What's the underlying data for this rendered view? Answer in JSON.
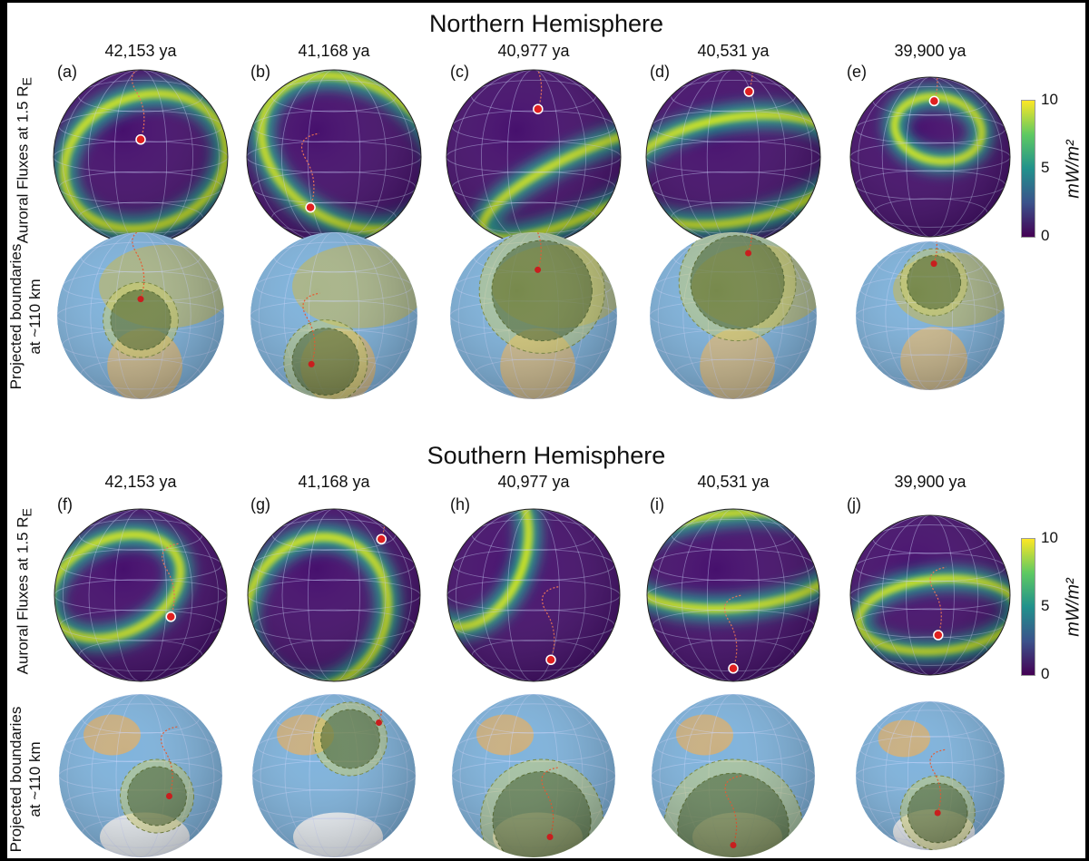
{
  "northern": {
    "title": "Northern Hemisphere",
    "panels": [
      {
        "label": "(a)",
        "title": "42,153 ya"
      },
      {
        "label": "(b)",
        "title": "41,168 ya"
      },
      {
        "label": "(c)",
        "title": "40,977 ya"
      },
      {
        "label": "(d)",
        "title": "40,531 ya"
      },
      {
        "label": "(e)",
        "title": "39,900 ya"
      }
    ]
  },
  "southern": {
    "title": "Southern Hemisphere",
    "panels": [
      {
        "label": "(f)",
        "title": "42,153 ya"
      },
      {
        "label": "(g)",
        "title": "41,168 ya"
      },
      {
        "label": "(h)",
        "title": "40,977 ya"
      },
      {
        "label": "(i)",
        "title": "40,531 ya"
      },
      {
        "label": "(j)",
        "title": "39,900 ya"
      }
    ]
  },
  "row_labels": {
    "aurora": "Auroral Fluxes at 1.5 R",
    "aurora_sub": "E",
    "projected_line1": "Projected boundaries",
    "projected_line2": "at ~110 km"
  },
  "colorbar": {
    "colormap": "viridis",
    "ticks": [
      "10",
      "5",
      "0"
    ],
    "unit": "mW/m²",
    "range": [
      0,
      10
    ]
  },
  "colors": {
    "aurora_low": "#440154",
    "aurora_high": "#fde725",
    "ocean": "#7fb3dc",
    "boundary_fill": "#c8cc55",
    "pole_track": "#e8552a",
    "pole_marker": "#e02020"
  }
}
